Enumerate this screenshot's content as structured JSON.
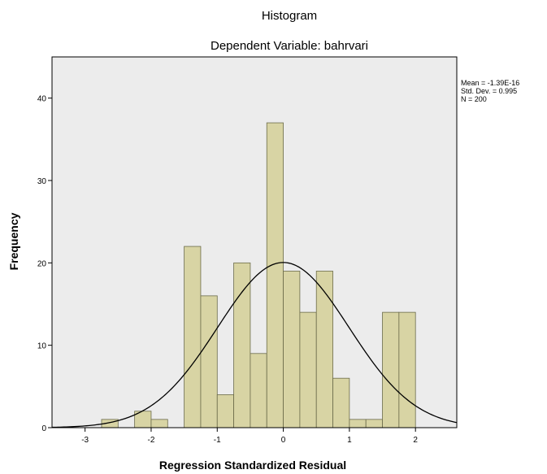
{
  "chart_data": {
    "type": "bar",
    "title": "Histogram",
    "subtitle": "Dependent Variable: bahrvari",
    "xlabel": "Regression Standardized Residual",
    "ylabel": "Frequency",
    "xlim": [
      -3.5,
      2.625
    ],
    "ylim": [
      0,
      45
    ],
    "x_ticks": [
      "-3",
      "-2",
      "-1",
      "0",
      "1",
      "2"
    ],
    "y_ticks": [
      "0",
      "10",
      "20",
      "30",
      "40"
    ],
    "grid": false,
    "bin_width": 0.25,
    "bins": [
      {
        "x0": -2.75,
        "x1": -2.5,
        "count": 1
      },
      {
        "x0": -2.25,
        "x1": -2.0,
        "count": 2
      },
      {
        "x0": -2.0,
        "x1": -1.75,
        "count": 1
      },
      {
        "x0": -1.5,
        "x1": -1.25,
        "count": 22
      },
      {
        "x0": -1.25,
        "x1": -1.0,
        "count": 16
      },
      {
        "x0": -1.0,
        "x1": -0.75,
        "count": 4
      },
      {
        "x0": -0.75,
        "x1": -0.5,
        "count": 20
      },
      {
        "x0": -0.5,
        "x1": -0.25,
        "count": 9
      },
      {
        "x0": -0.25,
        "x1": 0.0,
        "count": 37
      },
      {
        "x0": 0.0,
        "x1": 0.25,
        "count": 19
      },
      {
        "x0": 0.25,
        "x1": 0.5,
        "count": 14
      },
      {
        "x0": 0.5,
        "x1": 0.75,
        "count": 19
      },
      {
        "x0": 0.75,
        "x1": 1.0,
        "count": 6
      },
      {
        "x0": 1.0,
        "x1": 1.25,
        "count": 1
      },
      {
        "x0": 1.25,
        "x1": 1.5,
        "count": 1
      },
      {
        "x0": 1.5,
        "x1": 1.75,
        "count": 14
      },
      {
        "x0": 1.75,
        "x1": 2.0,
        "count": 14
      }
    ],
    "normal_curve": {
      "mean": 0,
      "std_dev": 0.995,
      "n": 200
    },
    "stats": [
      "Mean = -1.39E-16",
      "Std. Dev. = 0.995",
      "N = 200"
    ],
    "colors": {
      "plot_background": "#ececec",
      "bar_fill": "#d8d4a4",
      "bar_stroke": "#6b6b4a",
      "curve": "#000000"
    }
  }
}
